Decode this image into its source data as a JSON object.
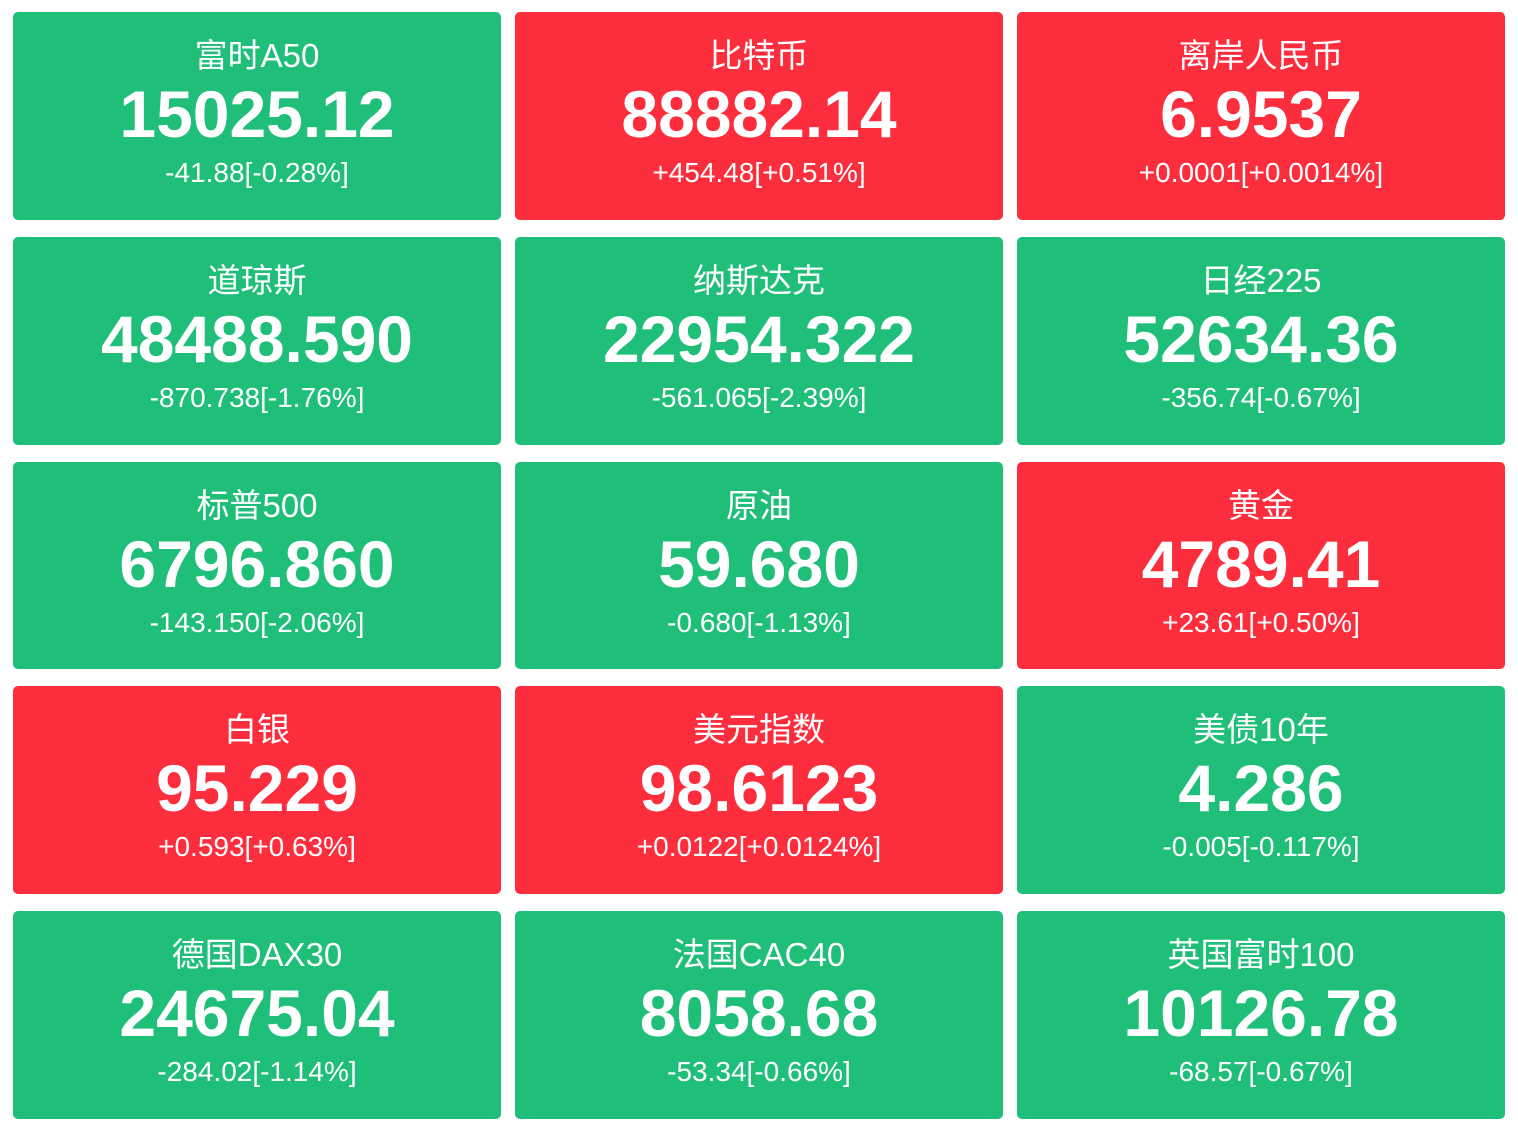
{
  "tiles": [
    {
      "name": "富时A50",
      "price": "15025.12",
      "change": "-41.88[-0.28%]",
      "color": "#1fbf7a"
    },
    {
      "name": "比特币",
      "price": "88882.14",
      "change": "+454.48[+0.51%]",
      "color": "#fc2d3d"
    },
    {
      "name": "离岸人民币",
      "price": "6.9537",
      "change": "+0.0001[+0.0014%]",
      "color": "#fc2d3d"
    },
    {
      "name": "道琼斯",
      "price": "48488.590",
      "change": "-870.738[-1.76%]",
      "color": "#1fbf7a"
    },
    {
      "name": "纳斯达克",
      "price": "22954.322",
      "change": "-561.065[-2.39%]",
      "color": "#1fbf7a"
    },
    {
      "name": "日经225",
      "price": "52634.36",
      "change": "-356.74[-0.67%]",
      "color": "#1fbf7a"
    },
    {
      "name": "标普500",
      "price": "6796.860",
      "change": "-143.150[-2.06%]",
      "color": "#1fbf7a"
    },
    {
      "name": "原油",
      "price": "59.680",
      "change": "-0.680[-1.13%]",
      "color": "#1fbf7a"
    },
    {
      "name": "黄金",
      "price": "4789.41",
      "change": "+23.61[+0.50%]",
      "color": "#fc2d3d"
    },
    {
      "name": "白银",
      "price": "95.229",
      "change": "+0.593[+0.63%]",
      "color": "#fc2d3d"
    },
    {
      "name": "美元指数",
      "price": "98.6123",
      "change": "+0.0122[+0.0124%]",
      "color": "#fc2d3d"
    },
    {
      "name": "美债10年",
      "price": "4.286",
      "change": "-0.005[-0.117%]",
      "color": "#1fbf7a"
    },
    {
      "name": "德国DAX30",
      "price": "24675.04",
      "change": "-284.02[-1.14%]",
      "color": "#1fbf7a"
    },
    {
      "name": "法国CAC40",
      "price": "8058.68",
      "change": "-53.34[-0.66%]",
      "color": "#1fbf7a"
    },
    {
      "name": "英国富时100",
      "price": "10126.78",
      "change": "-68.57[-0.67%]",
      "color": "#1fbf7a"
    }
  ]
}
